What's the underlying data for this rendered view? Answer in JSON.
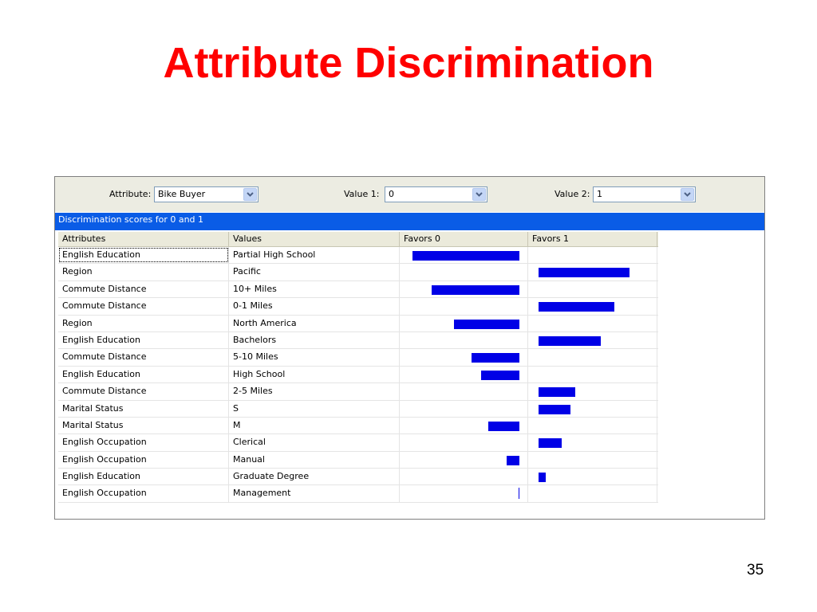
{
  "slide": {
    "title": "Attribute Discrimination",
    "page_number": "35"
  },
  "toolbar": {
    "attribute_label": "Attribute:",
    "attribute_value": "Bike Buyer",
    "value1_label": "Value 1:",
    "value1_value": "0",
    "value2_label": "Value 2:",
    "value2_value": "1"
  },
  "banner": {
    "text": "Discrimination scores for 0 and 1"
  },
  "columns": [
    "Attributes",
    "Values",
    "Favors 0",
    "Favors 1"
  ],
  "colors": {
    "bar": "#0000e6",
    "banner": "#0a5ce6",
    "title": "#ff0000"
  },
  "icons": {
    "dropdown": "chevron-down-icon"
  },
  "rows": [
    {
      "attribute": "English Education",
      "value": "Partial High School",
      "favors0": 100,
      "favors1": 0
    },
    {
      "attribute": "Region",
      "value": "Pacific",
      "favors0": 0,
      "favors1": 85
    },
    {
      "attribute": "Commute Distance",
      "value": "10+ Miles",
      "favors0": 82,
      "favors1": 0
    },
    {
      "attribute": "Commute Distance",
      "value": "0-1 Miles",
      "favors0": 0,
      "favors1": 71
    },
    {
      "attribute": "Region",
      "value": "North America",
      "favors0": 61,
      "favors1": 0
    },
    {
      "attribute": "English Education",
      "value": "Bachelors",
      "favors0": 0,
      "favors1": 58
    },
    {
      "attribute": "Commute Distance",
      "value": "5-10 Miles",
      "favors0": 45,
      "favors1": 0
    },
    {
      "attribute": "English Education",
      "value": "High School",
      "favors0": 36,
      "favors1": 0
    },
    {
      "attribute": "Commute Distance",
      "value": "2-5 Miles",
      "favors0": 0,
      "favors1": 34
    },
    {
      "attribute": "Marital Status",
      "value": "S",
      "favors0": 0,
      "favors1": 30
    },
    {
      "attribute": "Marital Status",
      "value": "M",
      "favors0": 29,
      "favors1": 0
    },
    {
      "attribute": "English Occupation",
      "value": "Clerical",
      "favors0": 0,
      "favors1": 22
    },
    {
      "attribute": "English Occupation",
      "value": "Manual",
      "favors0": 12,
      "favors1": 0
    },
    {
      "attribute": "English Education",
      "value": "Graduate Degree",
      "favors0": 0,
      "favors1": 7
    },
    {
      "attribute": "English Occupation",
      "value": "Management",
      "favors0": 1,
      "favors1": 0
    }
  ]
}
